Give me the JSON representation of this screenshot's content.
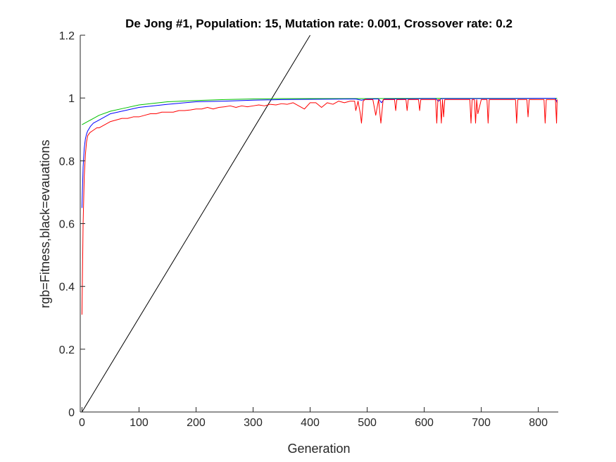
{
  "chart_data": {
    "type": "line",
    "title": "De Jong #1, Population: 15, Mutation rate: 0.001, Crossover rate: 0.2",
    "xlabel": "Generation",
    "ylabel": "rgb=Fitness,black=evauations",
    "xlim": [
      -3,
      835
    ],
    "ylim": [
      0,
      1.2
    ],
    "xticks": [
      0,
      100,
      200,
      300,
      400,
      500,
      600,
      700,
      800
    ],
    "yticks": [
      0,
      0.2,
      0.4,
      0.6,
      0.8,
      1,
      1.2
    ],
    "ytick_labels": [
      "0",
      "0.2",
      "0.4",
      "0.6",
      "0.8",
      "1",
      "1.2"
    ],
    "grid": false,
    "legend": "none",
    "series": [
      {
        "color": "#000000",
        "x": [
          0,
          400
        ],
        "y": [
          0,
          1.2
        ]
      },
      {
        "color": "#00c000",
        "x": [
          0,
          5,
          10,
          20,
          30,
          50,
          75,
          100,
          150,
          200,
          250,
          300,
          350,
          400,
          500,
          600,
          700,
          800,
          833
        ],
        "y": [
          0.915,
          0.92,
          0.925,
          0.935,
          0.945,
          0.958,
          0.968,
          0.978,
          0.988,
          0.992,
          0.995,
          0.997,
          0.998,
          0.998,
          0.998,
          0.999,
          0.999,
          0.999,
          0.999
        ]
      },
      {
        "color": "#0000ff",
        "x": [
          0,
          2,
          4,
          6,
          8,
          10,
          15,
          20,
          30,
          40,
          50,
          75,
          100,
          150,
          200,
          250,
          300,
          350,
          400,
          480,
          490,
          500,
          510,
          520,
          525,
          530,
          560,
          600,
          620,
          625,
          630,
          680,
          700,
          750,
          800,
          830,
          833
        ],
        "y": [
          0.65,
          0.78,
          0.84,
          0.87,
          0.885,
          0.895,
          0.91,
          0.92,
          0.93,
          0.94,
          0.95,
          0.96,
          0.97,
          0.98,
          0.988,
          0.99,
          0.993,
          0.995,
          0.996,
          0.997,
          0.993,
          0.997,
          0.997,
          0.997,
          0.985,
          0.997,
          0.997,
          0.998,
          0.998,
          0.99,
          0.998,
          0.998,
          0.998,
          0.998,
          0.999,
          0.999,
          0.985
        ]
      },
      {
        "color": "#ff0000",
        "x": [
          0,
          2,
          4,
          6,
          8,
          10,
          14,
          18,
          22,
          26,
          30,
          35,
          40,
          45,
          50,
          60,
          70,
          80,
          90,
          100,
          110,
          120,
          130,
          140,
          150,
          160,
          170,
          180,
          190,
          200,
          210,
          220,
          230,
          240,
          250,
          260,
          270,
          280,
          290,
          300,
          310,
          320,
          330,
          340,
          350,
          360,
          370,
          380,
          390,
          400,
          410,
          420,
          430,
          440,
          450,
          460,
          470,
          478,
          480,
          484,
          488,
          490,
          493,
          496,
          500,
          510,
          515,
          520,
          524,
          528,
          532,
          540,
          548,
          550,
          552,
          560,
          568,
          570,
          572,
          580,
          590,
          592,
          594,
          600,
          620,
          622,
          624,
          628,
          630,
          632,
          634,
          636,
          640,
          660,
          680,
          682,
          684,
          688,
          690,
          692,
          694,
          700,
          710,
          712,
          714,
          720,
          740,
          760,
          762,
          764,
          770,
          780,
          782,
          784,
          790,
          810,
          812,
          814,
          820,
          830,
          832,
          833
        ],
        "y": [
          0.31,
          0.6,
          0.75,
          0.82,
          0.86,
          0.88,
          0.89,
          0.895,
          0.9,
          0.905,
          0.905,
          0.91,
          0.915,
          0.92,
          0.925,
          0.93,
          0.935,
          0.935,
          0.94,
          0.94,
          0.945,
          0.95,
          0.95,
          0.955,
          0.955,
          0.955,
          0.96,
          0.96,
          0.962,
          0.965,
          0.965,
          0.97,
          0.965,
          0.97,
          0.972,
          0.975,
          0.97,
          0.975,
          0.972,
          0.975,
          0.978,
          0.975,
          0.98,
          0.978,
          0.982,
          0.98,
          0.985,
          0.975,
          0.965,
          0.985,
          0.985,
          0.97,
          0.985,
          0.98,
          0.99,
          0.985,
          0.99,
          0.99,
          0.96,
          0.99,
          0.95,
          0.92,
          0.99,
          0.995,
          0.995,
          0.995,
          0.945,
          0.995,
          0.92,
          0.995,
          0.995,
          0.995,
          0.995,
          0.96,
          0.995,
          0.995,
          0.995,
          0.96,
          0.995,
          0.995,
          0.995,
          0.96,
          0.995,
          0.995,
          0.995,
          0.92,
          0.995,
          0.995,
          0.92,
          0.995,
          0.94,
          0.995,
          0.995,
          0.995,
          0.995,
          0.92,
          0.995,
          0.995,
          0.92,
          0.995,
          0.95,
          0.995,
          0.995,
          0.92,
          0.995,
          0.995,
          0.995,
          0.995,
          0.92,
          0.995,
          0.995,
          0.995,
          0.94,
          0.995,
          0.995,
          0.995,
          0.92,
          0.995,
          0.995,
          0.995,
          0.92,
          0.995
        ]
      }
    ]
  }
}
